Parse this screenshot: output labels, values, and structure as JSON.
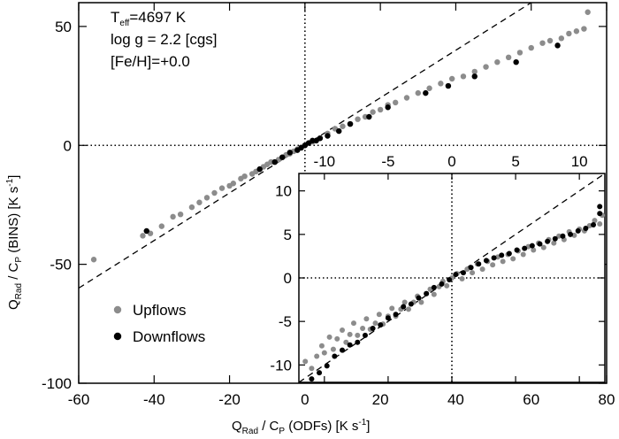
{
  "chart_data": [
    {
      "type": "scatter",
      "name": "main",
      "xlim": [
        -60,
        80
      ],
      "ylim": [
        -100,
        60
      ],
      "xticks": [
        -60,
        -40,
        -20,
        0,
        20,
        40,
        60,
        80
      ],
      "yticks": [
        -100,
        -50,
        0,
        50
      ],
      "xlabel": {
        "main": "Q",
        "sub": "Rad",
        "rest": " / C",
        "sub2": "P",
        "tail": " (ODFs) [K s",
        "sup": "-1",
        "end": "]"
      },
      "ylabel": {
        "main": "Q",
        "sub": "Rad",
        "rest": " / C",
        "sub2": "P",
        "tail": " (BINS) [K s",
        "sup": "-1",
        "end": "]"
      },
      "reference_lines": {
        "x": 0,
        "y": 0,
        "identity": true
      },
      "annotations": {
        "teff_main": "T",
        "teff_sub": "eff",
        "teff_value": "=4697 K",
        "logg": "log g = 2.2 [cgs]",
        "feh": "[Fe/H]=+0.0"
      },
      "series": [
        {
          "name": "Upflows",
          "color": "#8c8c8c",
          "points": [
            [
              -56,
              -48
            ],
            [
              -43,
              -38
            ],
            [
              -41,
              -37
            ],
            [
              -38,
              -34
            ],
            [
              -35,
              -30
            ],
            [
              -33,
              -29
            ],
            [
              -30,
              -26
            ],
            [
              -28,
              -24
            ],
            [
              -26,
              -22
            ],
            [
              -24,
              -20
            ],
            [
              -22,
              -18
            ],
            [
              -20,
              -17
            ],
            [
              -19,
              -16
            ],
            [
              -17,
              -14
            ],
            [
              -16,
              -13
            ],
            [
              -14,
              -12
            ],
            [
              -13,
              -11
            ],
            [
              -12,
              -10
            ],
            [
              -11,
              -9
            ],
            [
              -10,
              -8
            ],
            [
              -9,
              -7
            ],
            [
              -8,
              -7
            ],
            [
              -7,
              -6
            ],
            [
              -6,
              -5
            ],
            [
              -5,
              -4
            ],
            [
              -4,
              -3.5
            ],
            [
              -3,
              -2.5
            ],
            [
              -2,
              -1.6
            ],
            [
              -1,
              -0.8
            ],
            [
              0,
              0
            ],
            [
              2,
              1.5
            ],
            [
              4,
              3
            ],
            [
              6,
              5
            ],
            [
              8,
              7
            ],
            [
              10,
              8
            ],
            [
              12,
              9
            ],
            [
              14,
              11
            ],
            [
              16,
              12
            ],
            [
              18,
              14
            ],
            [
              20,
              15
            ],
            [
              22,
              17
            ],
            [
              24,
              18
            ],
            [
              27,
              20
            ],
            [
              30,
              22
            ],
            [
              33,
              24
            ],
            [
              36,
              26
            ],
            [
              39,
              28
            ],
            [
              42,
              29
            ],
            [
              45,
              31
            ],
            [
              48,
              33
            ],
            [
              51,
              35
            ],
            [
              54,
              37
            ],
            [
              57,
              39
            ],
            [
              60,
              41
            ],
            [
              63,
              43
            ],
            [
              65,
              44
            ],
            [
              68,
              45
            ],
            [
              70,
              47
            ],
            [
              72,
              48
            ],
            [
              74,
              49
            ],
            [
              75,
              56
            ]
          ]
        },
        {
          "name": "Downflows",
          "color": "#000000",
          "points": [
            [
              -42,
              -36
            ],
            [
              -12,
              -10
            ],
            [
              -8,
              -7
            ],
            [
              -6,
              -5
            ],
            [
              -4,
              -3
            ],
            [
              -2,
              -2
            ],
            [
              -1,
              -1
            ],
            [
              0,
              0
            ],
            [
              1,
              1
            ],
            [
              2,
              2
            ],
            [
              3,
              2
            ],
            [
              4,
              3
            ],
            [
              6,
              4
            ],
            [
              9,
              6
            ],
            [
              12,
              9
            ],
            [
              17,
              12
            ],
            [
              22,
              16
            ],
            [
              32,
              22
            ],
            [
              38,
              25
            ],
            [
              45,
              29
            ],
            [
              56,
              35
            ],
            [
              67,
              42
            ]
          ]
        }
      ],
      "legend": {
        "position": "bottom-left",
        "entries": [
          "Upflows",
          "Downflows"
        ]
      }
    },
    {
      "type": "scatter",
      "name": "inset",
      "xlim": [
        -12,
        12
      ],
      "ylim": [
        -12,
        12
      ],
      "xticks": [
        -10,
        -5,
        0,
        5,
        10
      ],
      "yticks": [
        -10,
        -5,
        0,
        5,
        10
      ],
      "reference_lines": {
        "x": 0,
        "y": 0,
        "identity": true
      },
      "series": [
        {
          "name": "Upflows",
          "color": "#8c8c8c",
          "points": [
            [
              -11.5,
              -9.6
            ],
            [
              -11,
              -10.4
            ],
            [
              -10.6,
              -9
            ],
            [
              -10.2,
              -7.8
            ],
            [
              -10,
              -8.6
            ],
            [
              -9.6,
              -6.8
            ],
            [
              -9.3,
              -8.2
            ],
            [
              -9,
              -7
            ],
            [
              -8.6,
              -6
            ],
            [
              -8.3,
              -7.4
            ],
            [
              -8,
              -6.5
            ],
            [
              -7.7,
              -5.2
            ],
            [
              -7.4,
              -6.6
            ],
            [
              -7,
              -5.8
            ],
            [
              -6.7,
              -4.7
            ],
            [
              -6.4,
              -5.9
            ],
            [
              -6,
              -5.2
            ],
            [
              -5.7,
              -4.2
            ],
            [
              -5.4,
              -5.3
            ],
            [
              -5,
              -4.4
            ],
            [
              -4.7,
              -3.5
            ],
            [
              -4.4,
              -4.4
            ],
            [
              -4,
              -3.6
            ],
            [
              -3.7,
              -2.8
            ],
            [
              -3.4,
              -3.6
            ],
            [
              -3,
              -2.8
            ],
            [
              -2.7,
              -2.1
            ],
            [
              -2.4,
              -2.8
            ],
            [
              -2,
              -1.8
            ],
            [
              -1.7,
              -1.3
            ],
            [
              -1.4,
              -1.9
            ],
            [
              -1,
              -1
            ],
            [
              -0.7,
              -0.4
            ],
            [
              -0.4,
              -0.9
            ],
            [
              0,
              0
            ],
            [
              0.4,
              0.5
            ],
            [
              0.8,
              -0.1
            ],
            [
              1.2,
              1
            ],
            [
              1.6,
              0.6
            ],
            [
              2,
              1.6
            ],
            [
              2.4,
              1
            ],
            [
              2.8,
              1.9
            ],
            [
              3.2,
              1.5
            ],
            [
              3.6,
              2.4
            ],
            [
              4,
              1.9
            ],
            [
              4.4,
              2.7
            ],
            [
              4.8,
              2.2
            ],
            [
              5.2,
              3.1
            ],
            [
              5.6,
              2.7
            ],
            [
              6,
              3.6
            ],
            [
              6.4,
              3.2
            ],
            [
              6.8,
              4
            ],
            [
              7.2,
              3.5
            ],
            [
              7.6,
              4.4
            ],
            [
              8,
              4
            ],
            [
              8.4,
              4.8
            ],
            [
              8.8,
              4.4
            ],
            [
              9.2,
              5.3
            ],
            [
              9.6,
              4.9
            ],
            [
              10,
              5.6
            ],
            [
              10.4,
              5.4
            ],
            [
              10.8,
              6
            ],
            [
              11.2,
              6.6
            ],
            [
              11.6,
              6.2
            ],
            [
              11.8,
              7.2
            ]
          ]
        },
        {
          "name": "Downflows",
          "color": "#000000",
          "points": [
            [
              -11,
              -11.6
            ],
            [
              -10.4,
              -10.9
            ],
            [
              -9.8,
              -10.1
            ],
            [
              -9.2,
              -9
            ],
            [
              -8.6,
              -8.3
            ],
            [
              -8,
              -7.7
            ],
            [
              -7.4,
              -7.4
            ],
            [
              -6.8,
              -6.6
            ],
            [
              -6.2,
              -5.8
            ],
            [
              -5.6,
              -5.4
            ],
            [
              -5,
              -4.6
            ],
            [
              -4.4,
              -4.2
            ],
            [
              -3.8,
              -3.3
            ],
            [
              -3.2,
              -3
            ],
            [
              -2.6,
              -2.3
            ],
            [
              -2,
              -1.8
            ],
            [
              -1.4,
              -1.1
            ],
            [
              -0.8,
              -0.7
            ],
            [
              -0.2,
              -0.2
            ],
            [
              0.3,
              0.4
            ],
            [
              0.9,
              0.6
            ],
            [
              1.5,
              1.2
            ],
            [
              2.1,
              1.6
            ],
            [
              2.7,
              2
            ],
            [
              3.3,
              2.3
            ],
            [
              3.9,
              2.6
            ],
            [
              4.5,
              2.8
            ],
            [
              5.1,
              3.2
            ],
            [
              5.7,
              3.4
            ],
            [
              6.3,
              3.7
            ],
            [
              6.9,
              3.9
            ],
            [
              7.5,
              4.2
            ],
            [
              8.1,
              4.5
            ],
            [
              8.7,
              4.8
            ],
            [
              9.3,
              5
            ],
            [
              9.9,
              5.4
            ],
            [
              10.5,
              5.7
            ],
            [
              11.1,
              6.1
            ],
            [
              11.6,
              7.4
            ],
            [
              11.6,
              8.2
            ]
          ]
        }
      ]
    }
  ]
}
